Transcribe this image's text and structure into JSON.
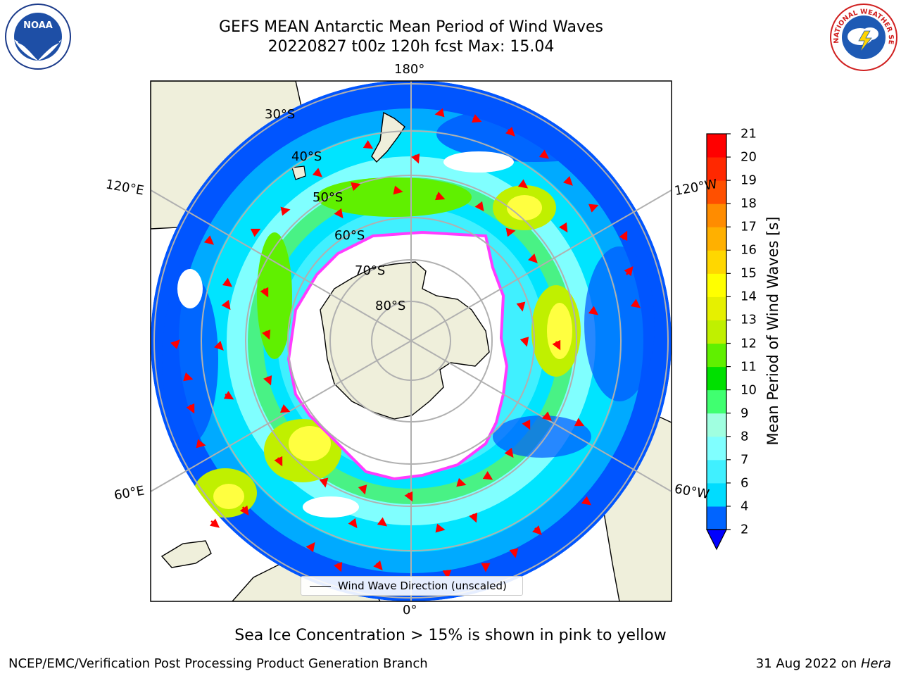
{
  "title": {
    "line1": "GEFS MEAN Antarctic Mean Period of Wind Waves",
    "line2": "20220827 t00z 120h fcst   Max: 15.04"
  },
  "logos": {
    "noaa_text": "NOAA",
    "nws_text": "NATIONAL WEATHER SERVICE"
  },
  "map": {
    "projection": "south-polar-stereographic",
    "longitude_labels": {
      "top": "180°",
      "bottom": "0°",
      "left_upper": "120°E",
      "left_lower": "60°E",
      "right_upper": "120°W",
      "right_lower": "60°W"
    },
    "latitude_labels": [
      "30°S",
      "40°S",
      "50°S",
      "60°S",
      "70°S",
      "80°S"
    ],
    "legend_label": "Wind Wave Direction (unscaled)",
    "colors": {
      "land": "#efefdb",
      "ocean_blue": "#0050ff",
      "ocean_cyan": "#00e6ff",
      "ice_edge": "#ff3cff",
      "vector": "#ff0000"
    }
  },
  "colorbar": {
    "title": "Mean Period of Wind Waves [s]",
    "ticks": [
      "2",
      "4",
      "6",
      "7",
      "8",
      "9",
      "10",
      "11",
      "12",
      "13",
      "14",
      "15",
      "16",
      "17",
      "18",
      "19",
      "20",
      "21"
    ],
    "colors": [
      "#0000ff",
      "#0064ff",
      "#00dcff",
      "#40f0ff",
      "#80ffff",
      "#a0ffe0",
      "#40ff70",
      "#00e000",
      "#60f000",
      "#c0f000",
      "#e6f000",
      "#ffff00",
      "#ffd700",
      "#ffb000",
      "#ff8c00",
      "#ff5000",
      "#ff2800",
      "#ff0000"
    ],
    "extend": "min"
  },
  "sea_ice_note": "Sea Ice Concentration > 15% is shown in pink to yellow",
  "footer": {
    "left": "NCEP/EMC/Verification Post Processing Product Generation Branch",
    "date": "31 Aug 2022 on ",
    "host": "Hera"
  }
}
